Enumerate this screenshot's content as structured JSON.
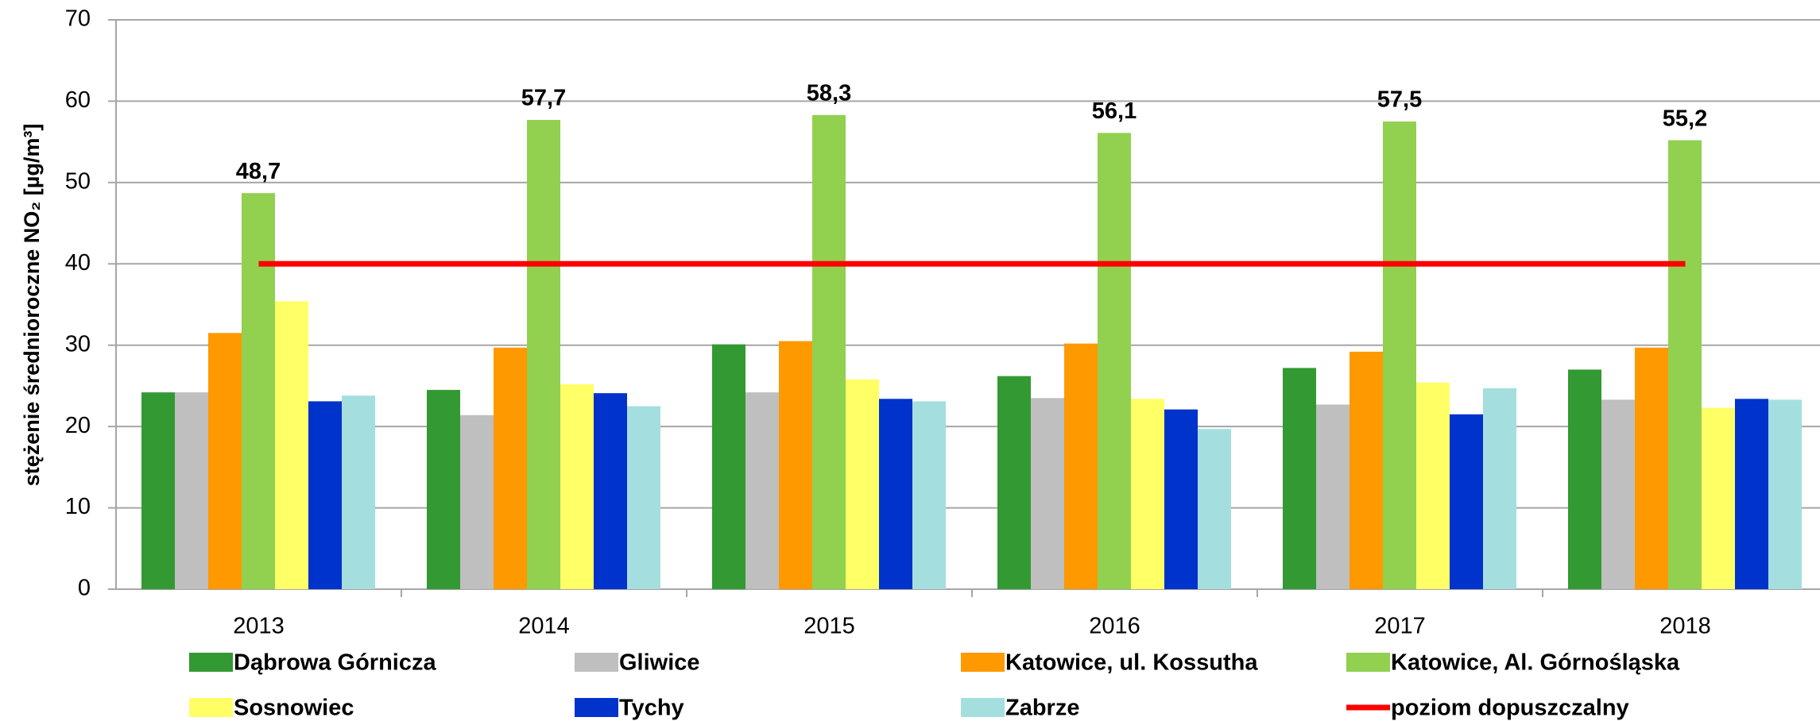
{
  "chart_data": {
    "type": "bar",
    "y_label": "stężenie średnioroczne NO₂ [µg/m³]",
    "categories": [
      "2013",
      "2014",
      "2015",
      "2016",
      "2017",
      "2018"
    ],
    "series": [
      {
        "name": "Dąbrowa Górnicza",
        "color": "#339933",
        "values": [
          24.2,
          24.5,
          30.1,
          26.2,
          27.2,
          27.0
        ]
      },
      {
        "name": "Gliwice",
        "color": "#bfbfbf",
        "values": [
          24.2,
          21.4,
          24.2,
          23.5,
          22.7,
          23.3
        ]
      },
      {
        "name": "Katowice, ul. Kossutha",
        "color": "#ff9900",
        "values": [
          31.5,
          29.7,
          30.5,
          30.2,
          29.2,
          29.7
        ]
      },
      {
        "name": "Katowice, Al. Górnośląska",
        "color": "#92d050",
        "values": [
          48.7,
          57.7,
          58.3,
          56.1,
          57.5,
          55.2
        ],
        "value_labels": [
          "48,7",
          "57,7",
          "58,3",
          "56,1",
          "57,5",
          "55,2"
        ]
      },
      {
        "name": "Sosnowiec",
        "color": "#ffff66",
        "values": [
          35.4,
          25.2,
          25.8,
          23.4,
          25.4,
          22.3
        ]
      },
      {
        "name": "Tychy",
        "color": "#0033cc",
        "values": [
          23.1,
          24.1,
          23.4,
          22.1,
          21.5,
          23.4
        ]
      },
      {
        "name": "Zabrze",
        "color": "#a5dede",
        "values": [
          23.8,
          22.5,
          23.1,
          19.7,
          24.7,
          23.3
        ]
      },
      {
        "name": "poziom dopuszczalny",
        "color": "#ff0000",
        "type": "line",
        "values": [
          40,
          40,
          40,
          40,
          40,
          40
        ]
      }
    ],
    "ylim": [
      0,
      70
    ],
    "yticks": [
      0,
      10,
      20,
      30,
      40,
      50,
      60,
      70
    ],
    "grid": true
  }
}
